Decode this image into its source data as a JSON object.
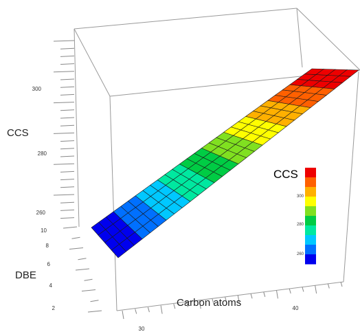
{
  "chart_data": {
    "type": "surface",
    "z_label": "CCS",
    "y_label": "DBE",
    "x_label": "Carbon atoms",
    "x_ticks": [
      "30",
      "40"
    ],
    "y_ticks": [
      "2",
      "4",
      "6",
      "8",
      "10"
    ],
    "z_ticks": [
      "260",
      "280",
      "300"
    ],
    "colorbar": {
      "title": "CCS",
      "ticks": [
        "260",
        "280",
        "300"
      ],
      "colors": [
        "#0000ee",
        "#0070ff",
        "#00c8ff",
        "#00e8a0",
        "#00cc44",
        "#80e020",
        "#ffff00",
        "#ffb000",
        "#ff6000",
        "#ee0000"
      ]
    },
    "x_range": [
      28,
      48
    ],
    "y_range": [
      1,
      10
    ],
    "z_range": [
      258,
      306
    ],
    "surface": {
      "ccs_min": 256,
      "ccs_max": 308
    }
  }
}
